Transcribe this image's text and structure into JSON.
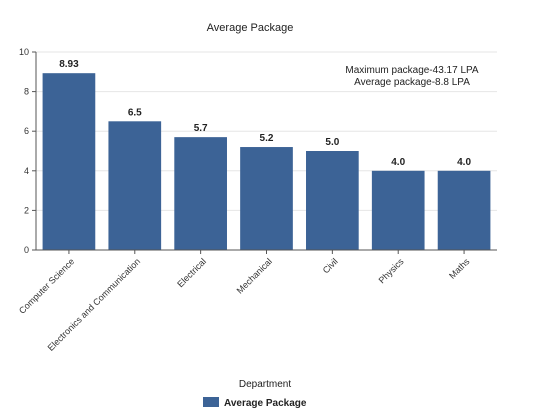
{
  "chart_data": {
    "type": "bar",
    "title": "Average Package",
    "xlabel": "Department",
    "ylabel": "",
    "ylim": [
      0,
      10
    ],
    "yticks": [
      0,
      2,
      4,
      6,
      8,
      10
    ],
    "grid": true,
    "categories": [
      "Computer Science",
      "Electronics and Communication",
      "Electrical",
      "Mechanical",
      "Civil",
      "Physics",
      "Maths"
    ],
    "series": [
      {
        "name": "Average Package",
        "values": [
          8.93,
          6.5,
          5.7,
          5.2,
          5.0,
          4.0,
          4.0
        ],
        "value_labels": [
          "8.93",
          "6.5",
          "5.7",
          "5.2",
          "5.0",
          "4.0",
          "4.0"
        ],
        "color": "#3c6396"
      }
    ],
    "annotations": [
      "Maximum package-43.17 LPA",
      "Average package-8.8 LPA"
    ],
    "legend": "bottom-center"
  }
}
